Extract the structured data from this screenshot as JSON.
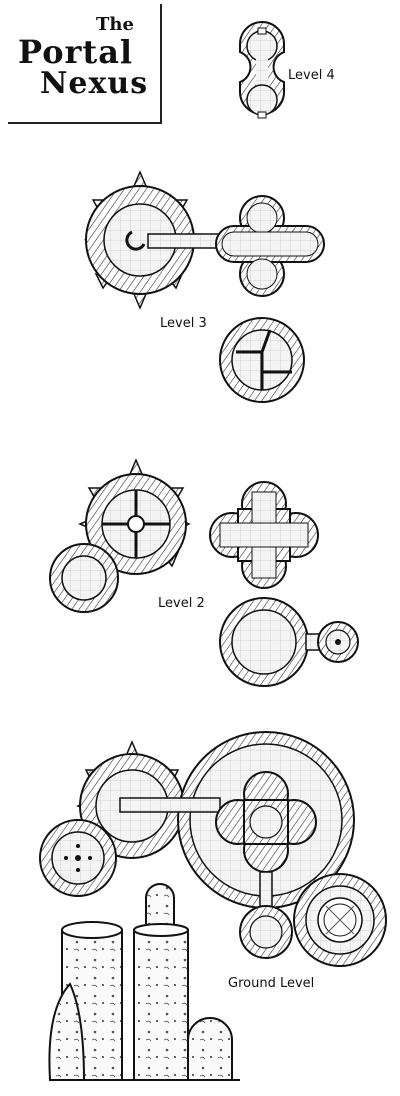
{
  "title": {
    "line1": "The",
    "line2": "Portal",
    "line3": "Nexus"
  },
  "levels": {
    "level4": "Level 4",
    "level3": "Level 3",
    "level2": "Level 2",
    "ground": "Ground Level"
  },
  "colors": {
    "ink": "#111111",
    "floor": "#f2f2f2",
    "grid": "#d0d0d0",
    "wall": "#ffffff"
  }
}
